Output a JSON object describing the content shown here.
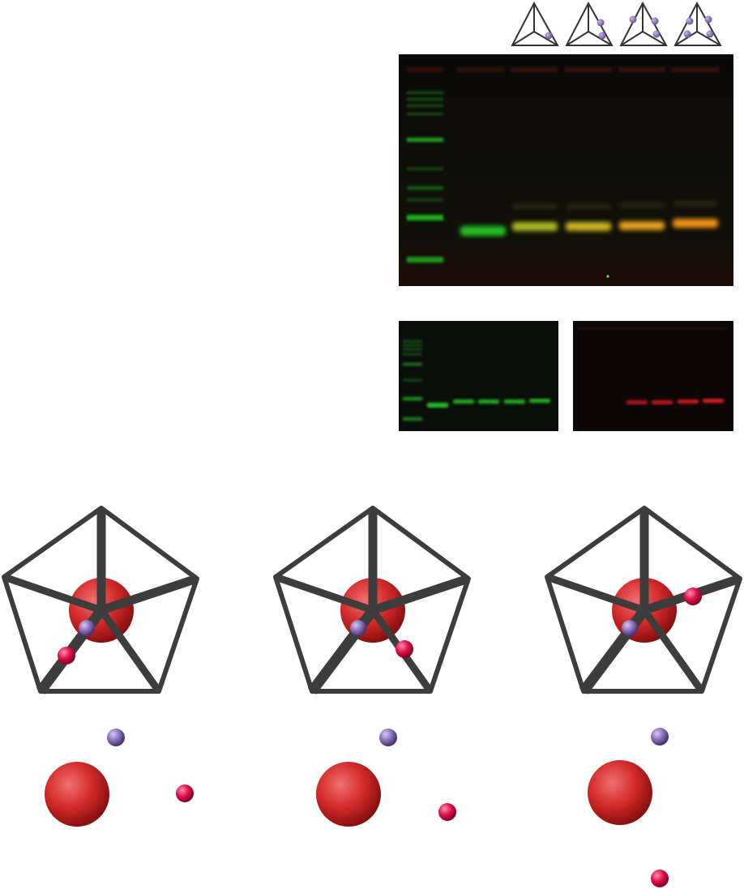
{
  "figure": {
    "tetrahedron_icons": [
      {
        "label": "",
        "dots": 1
      },
      {
        "label": "",
        "dots": 2
      },
      {
        "label": "",
        "dots": 3
      },
      {
        "label": "",
        "dots": 4
      }
    ],
    "gel_main": {
      "lanes": 6,
      "ladder_lane": true,
      "band_colors": [
        "#22c022",
        "#a8b820",
        "#c8b420",
        "#e0a020",
        "#f09018"
      ],
      "background": "#0b0b0b"
    },
    "gel_green_channel": {
      "lanes": 6,
      "band_color": "#22c022"
    },
    "gel_red_channel": {
      "lanes": 6,
      "band_color": "#d01818"
    },
    "structures": [
      {
        "name": "pentagonal-frame-1",
        "particles": [
          "large-red-sphere",
          "purple-dot",
          "pink-dot"
        ]
      },
      {
        "name": "pentagonal-frame-2",
        "particles": [
          "large-red-sphere",
          "purple-dot",
          "pink-dot"
        ]
      },
      {
        "name": "pentagonal-frame-3",
        "particles": [
          "large-red-sphere",
          "purple-dot",
          "pink-dot"
        ]
      }
    ],
    "colors": {
      "frame": "#3d3d3d",
      "large_sphere": "#d42a2a",
      "purple_dot": "#8a70b8",
      "pink_dot": "#e0104a"
    }
  }
}
